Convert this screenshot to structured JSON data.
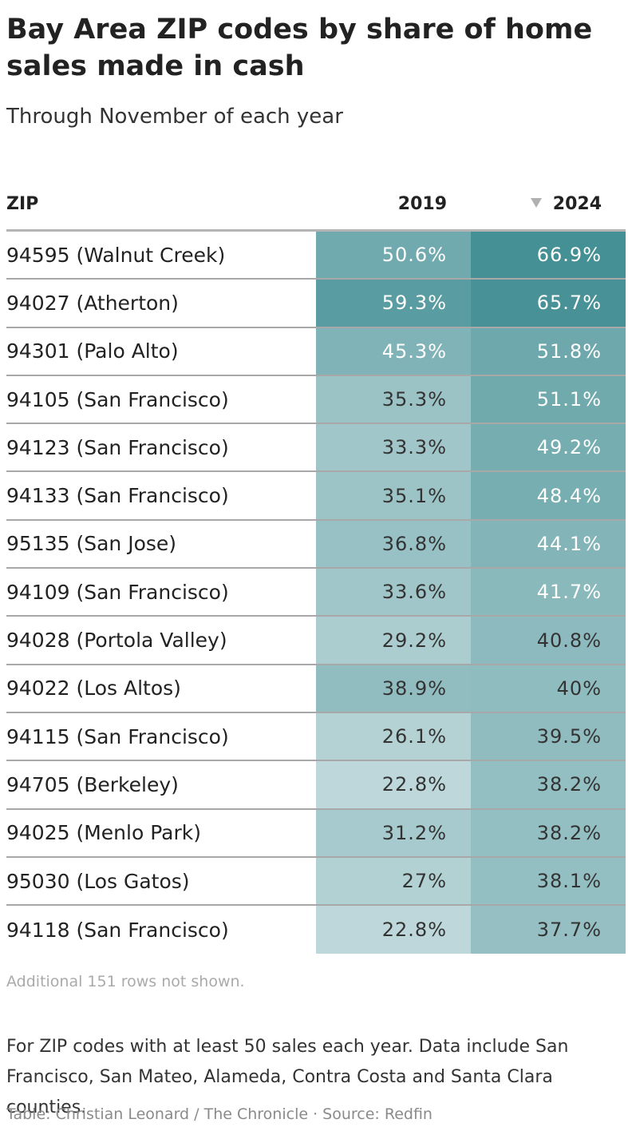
{
  "title": "Bay Area ZIP codes by share of home sales made in cash",
  "subtitle": "Through November of each year",
  "headers": {
    "zip": "ZIP",
    "y2019": "2019",
    "y2024": "2024"
  },
  "sort_icon": "sort-descending-triangle-icon",
  "colors": {
    "scale_low": "#c5dcde",
    "scale_high": "#3c8b90",
    "dark_text": "#333333",
    "light_text": "#ffffff"
  },
  "color_scale_domain": [
    20,
    70
  ],
  "chart_data": {
    "type": "table",
    "columns": [
      "ZIP",
      "2019",
      "2024"
    ],
    "rows": [
      {
        "zip": "94595 (Walnut Creek)",
        "v2019": 50.6,
        "v2024": 66.9,
        "d2019": "50.6%",
        "d2024": "66.9%"
      },
      {
        "zip": "94027 (Atherton)",
        "v2019": 59.3,
        "v2024": 65.7,
        "d2019": "59.3%",
        "d2024": "65.7%"
      },
      {
        "zip": "94301 (Palo Alto)",
        "v2019": 45.3,
        "v2024": 51.8,
        "d2019": "45.3%",
        "d2024": "51.8%"
      },
      {
        "zip": "94105 (San Francisco)",
        "v2019": 35.3,
        "v2024": 51.1,
        "d2019": "35.3%",
        "d2024": "51.1%"
      },
      {
        "zip": "94123 (San Francisco)",
        "v2019": 33.3,
        "v2024": 49.2,
        "d2019": "33.3%",
        "d2024": "49.2%"
      },
      {
        "zip": "94133 (San Francisco)",
        "v2019": 35.1,
        "v2024": 48.4,
        "d2019": "35.1%",
        "d2024": "48.4%"
      },
      {
        "zip": "95135 (San Jose)",
        "v2019": 36.8,
        "v2024": 44.1,
        "d2019": "36.8%",
        "d2024": "44.1%"
      },
      {
        "zip": "94109 (San Francisco)",
        "v2019": 33.6,
        "v2024": 41.7,
        "d2019": "33.6%",
        "d2024": "41.7%"
      },
      {
        "zip": "94028 (Portola Valley)",
        "v2019": 29.2,
        "v2024": 40.8,
        "d2019": "29.2%",
        "d2024": "40.8%"
      },
      {
        "zip": "94022 (Los Altos)",
        "v2019": 38.9,
        "v2024": 40,
        "d2019": "38.9%",
        "d2024": "40%"
      },
      {
        "zip": "94115 (San Francisco)",
        "v2019": 26.1,
        "v2024": 39.5,
        "d2019": "26.1%",
        "d2024": "39.5%"
      },
      {
        "zip": "94705 (Berkeley)",
        "v2019": 22.8,
        "v2024": 38.2,
        "d2019": "22.8%",
        "d2024": "38.2%"
      },
      {
        "zip": "94025 (Menlo Park)",
        "v2019": 31.2,
        "v2024": 38.2,
        "d2019": "31.2%",
        "d2024": "38.2%"
      },
      {
        "zip": "95030 (Los Gatos)",
        "v2019": 27,
        "v2024": 38.1,
        "d2019": "27%",
        "d2024": "38.1%"
      },
      {
        "zip": "94118 (San Francisco)",
        "v2019": 22.8,
        "v2024": 37.7,
        "d2019": "22.8%",
        "d2024": "37.7%"
      }
    ],
    "sorted_by": "2024",
    "sort_order": "descending"
  },
  "rows_note": "Additional 151 rows not shown.",
  "note": "For ZIP codes with at least 50 sales each year. Data include San Francisco, San Mateo, Alameda, Contra Costa and Santa Clara counties.",
  "credit": "Table: Christian Leonard / The Chronicle · Source: Redfin"
}
